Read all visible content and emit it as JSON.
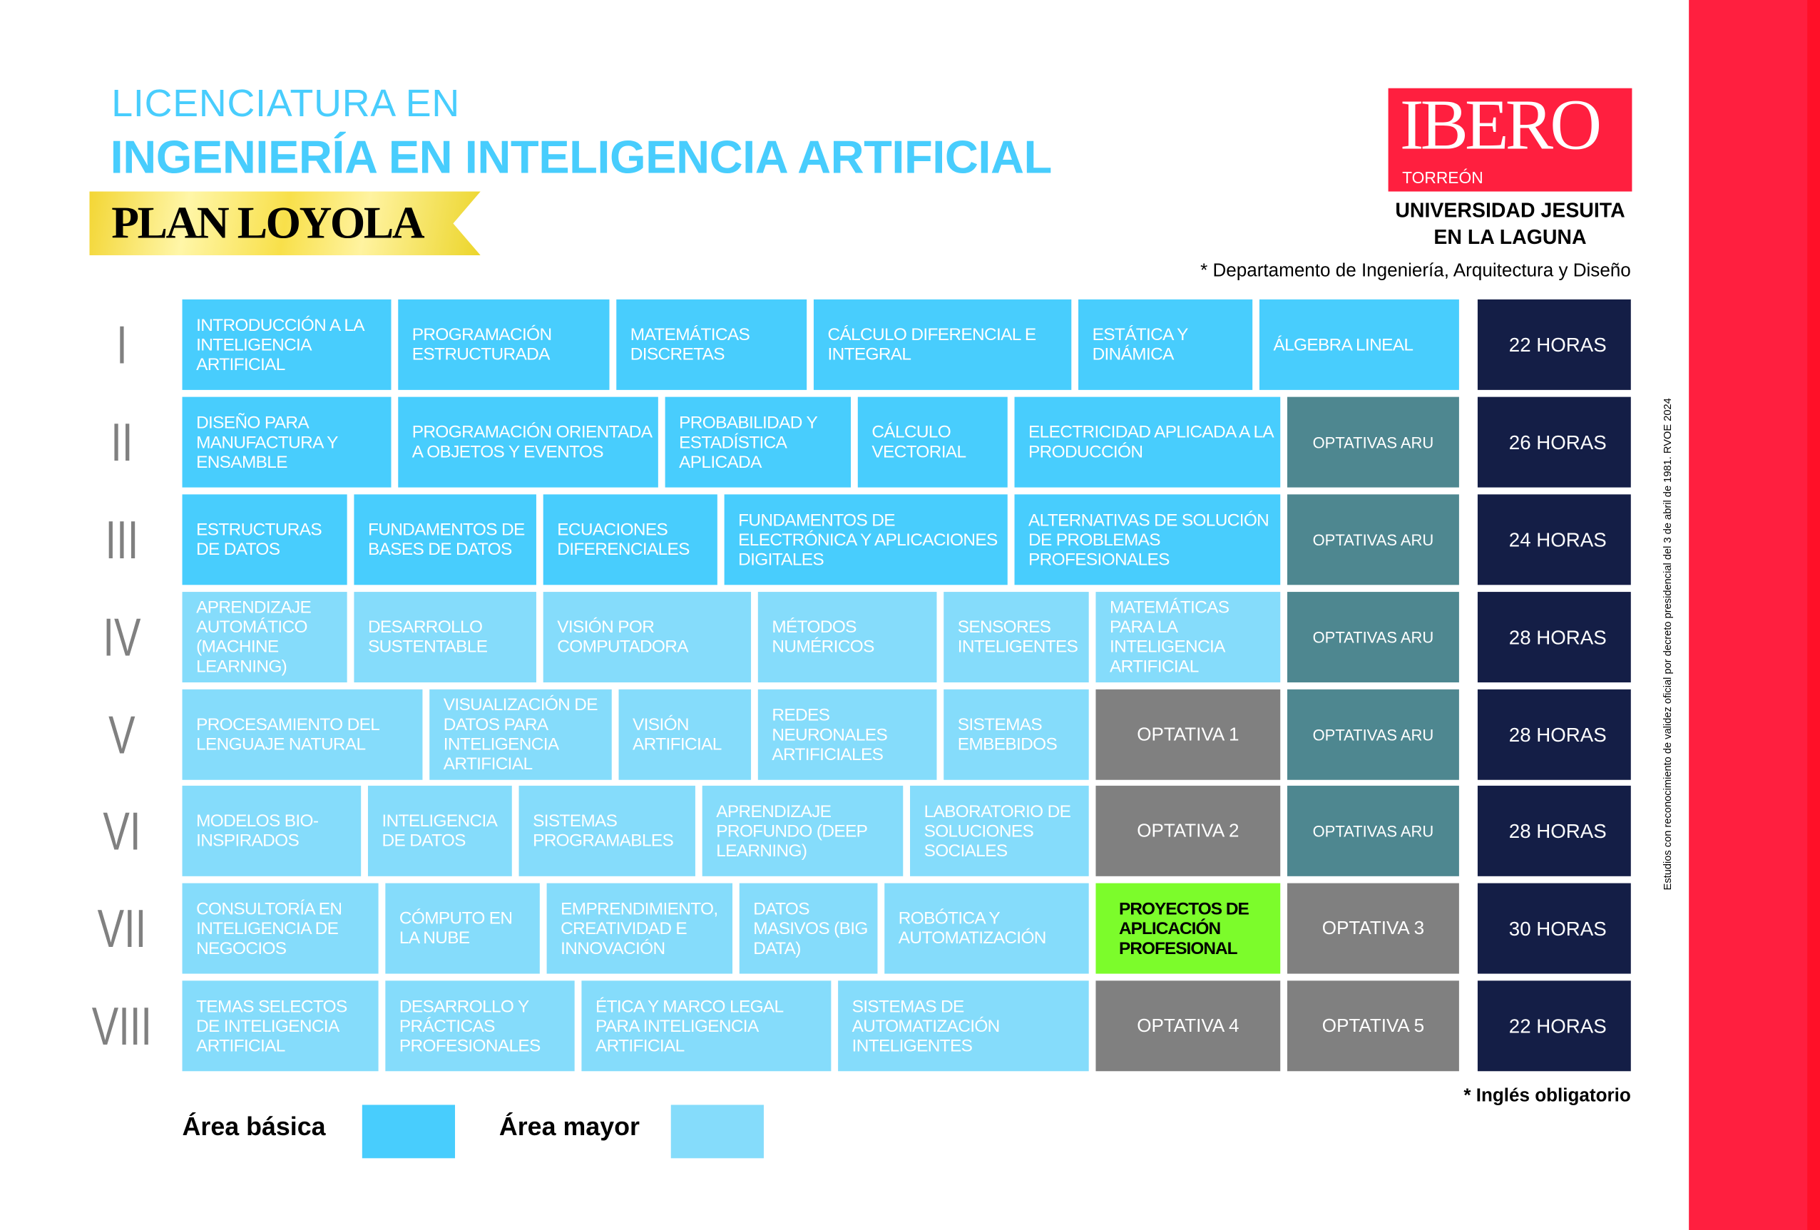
{
  "header": {
    "subtitle": "LICENCIATURA EN",
    "title": "INGENIERÍA EN INTELIGENCIA ARTIFICIAL",
    "plan": "PLAN LOYOLA",
    "logo": {
      "brand": "IBERO",
      "city": "TORREÓN"
    },
    "university_line1": "UNIVERSIDAD JESUITA",
    "university_line2": "EN LA LAGUNA",
    "department": "* Departamento de Ingeniería, Arquitectura y Diseño"
  },
  "colors": {
    "basic": "#48CDFD",
    "major": "#85DCFB",
    "aru": "#4E8790",
    "optativa": "#808080",
    "project": "#7CFC2B",
    "hours": "#141E46",
    "brand_red": "#FF1F3F"
  },
  "semesters": [
    {
      "roman": "I",
      "hours": "22 HORAS",
      "courses": [
        {
          "name": "Introducción a la Inteligencia Artificial",
          "type": "basic"
        },
        {
          "name": "Programación Estructurada",
          "type": "basic"
        },
        {
          "name": "Matemáticas Discretas",
          "type": "basic"
        },
        {
          "name": "Cálculo Diferencial e Integral",
          "type": "basic"
        },
        {
          "name": "Estática y Dinámica",
          "type": "basic"
        },
        {
          "name": "Álgebra Lineal",
          "type": "basic"
        }
      ]
    },
    {
      "roman": "II",
      "hours": "26 HORAS",
      "courses": [
        {
          "name": "Diseño para Manufactura y Ensamble",
          "type": "basic"
        },
        {
          "name": "Programación Orientada a Objetos y Eventos",
          "type": "basic"
        },
        {
          "name": "Probabilidad y Estadística Aplicada",
          "type": "basic"
        },
        {
          "name": "Cálculo Vectorial",
          "type": "basic"
        },
        {
          "name": "Electricidad Aplicada a la Producción",
          "type": "basic"
        },
        {
          "name": "Optativas ARU",
          "type": "aru"
        }
      ]
    },
    {
      "roman": "III",
      "hours": "24 HORAS",
      "courses": [
        {
          "name": "Estructuras de Datos",
          "type": "basic"
        },
        {
          "name": "Fundamentos de Bases de Datos",
          "type": "basic"
        },
        {
          "name": "Ecuaciones Diferenciales",
          "type": "basic"
        },
        {
          "name": "Fundamentos de Electrónica y Aplicaciones Digitales",
          "type": "basic"
        },
        {
          "name": "Alternativas de Solución de Problemas Profesionales",
          "type": "basic"
        },
        {
          "name": "Optativas ARU",
          "type": "aru"
        }
      ]
    },
    {
      "roman": "IV",
      "hours": "28 HORAS",
      "courses": [
        {
          "name": "Aprendizaje Automático (Machine Learning)",
          "type": "major"
        },
        {
          "name": "Desarrollo Sustentable",
          "type": "major"
        },
        {
          "name": "Visión por Computadora",
          "type": "major"
        },
        {
          "name": "Métodos Numéricos",
          "type": "major"
        },
        {
          "name": "Sensores Inteligentes",
          "type": "major"
        },
        {
          "name": "Matemáticas para la Inteligencia Artificial",
          "type": "major"
        },
        {
          "name": "Optativas ARU",
          "type": "aru"
        }
      ]
    },
    {
      "roman": "V",
      "hours": "28 HORAS",
      "courses": [
        {
          "name": "Procesamiento del Lenguaje Natural",
          "type": "major"
        },
        {
          "name": "Visualización de Datos para Inteligencia Artificial",
          "type": "major"
        },
        {
          "name": "Visión Artificial",
          "type": "major"
        },
        {
          "name": "Redes Neuronales Artificiales",
          "type": "major"
        },
        {
          "name": "Sistemas Embebidos",
          "type": "major"
        },
        {
          "name": "Optativa 1",
          "type": "opt"
        },
        {
          "name": "Optativas ARU",
          "type": "aru"
        }
      ]
    },
    {
      "roman": "VI",
      "hours": "28 HORAS",
      "courses": [
        {
          "name": "Modelos Bio-Inspirados",
          "type": "major"
        },
        {
          "name": "Inteligencia de Datos",
          "type": "major"
        },
        {
          "name": "Sistemas Programables",
          "type": "major"
        },
        {
          "name": "Aprendizaje Profundo (Deep Learning)",
          "type": "major"
        },
        {
          "name": "Laboratorio de Soluciones Sociales",
          "type": "major"
        },
        {
          "name": "Optativa 2",
          "type": "opt"
        },
        {
          "name": "Optativas ARU",
          "type": "aru"
        }
      ]
    },
    {
      "roman": "VII",
      "hours": "30 HORAS",
      "courses": [
        {
          "name": "Consultoría en Inteligencia de Negocios",
          "type": "major"
        },
        {
          "name": "Cómputo en la Nube",
          "type": "major"
        },
        {
          "name": "Emprendimiento, Creatividad e Innovación",
          "type": "major"
        },
        {
          "name": "Datos Masivos (Big Data)",
          "type": "major"
        },
        {
          "name": "Robótica y Automatización",
          "type": "major"
        },
        {
          "name": "Proyectos de Aplicación Profesional",
          "type": "project"
        },
        {
          "name": "Optativa 3",
          "type": "opt"
        }
      ]
    },
    {
      "roman": "VIII",
      "hours": "22 HORAS",
      "courses": [
        {
          "name": "Temas Selectos de Inteligencia Artificial",
          "type": "major"
        },
        {
          "name": "Desarrollo y Prácticas Profesionales",
          "type": "major"
        },
        {
          "name": "Ética y Marco Legal para Inteligencia Artificial",
          "type": "major"
        },
        {
          "name": "Sistemas de Automatización Inteligentes",
          "type": "major"
        },
        {
          "name": "Optativa 4",
          "type": "opt"
        },
        {
          "name": "Optativa 5",
          "type": "opt"
        }
      ]
    }
  ],
  "footer": {
    "english_note": "* Inglés obligatorio",
    "legend_basic": "Área básica",
    "legend_major": "Área mayor",
    "decree": "Estudios con reconocimiento de validez oficial por decreto presidencial del 3 de abril de 1981. RVOE 2024"
  }
}
